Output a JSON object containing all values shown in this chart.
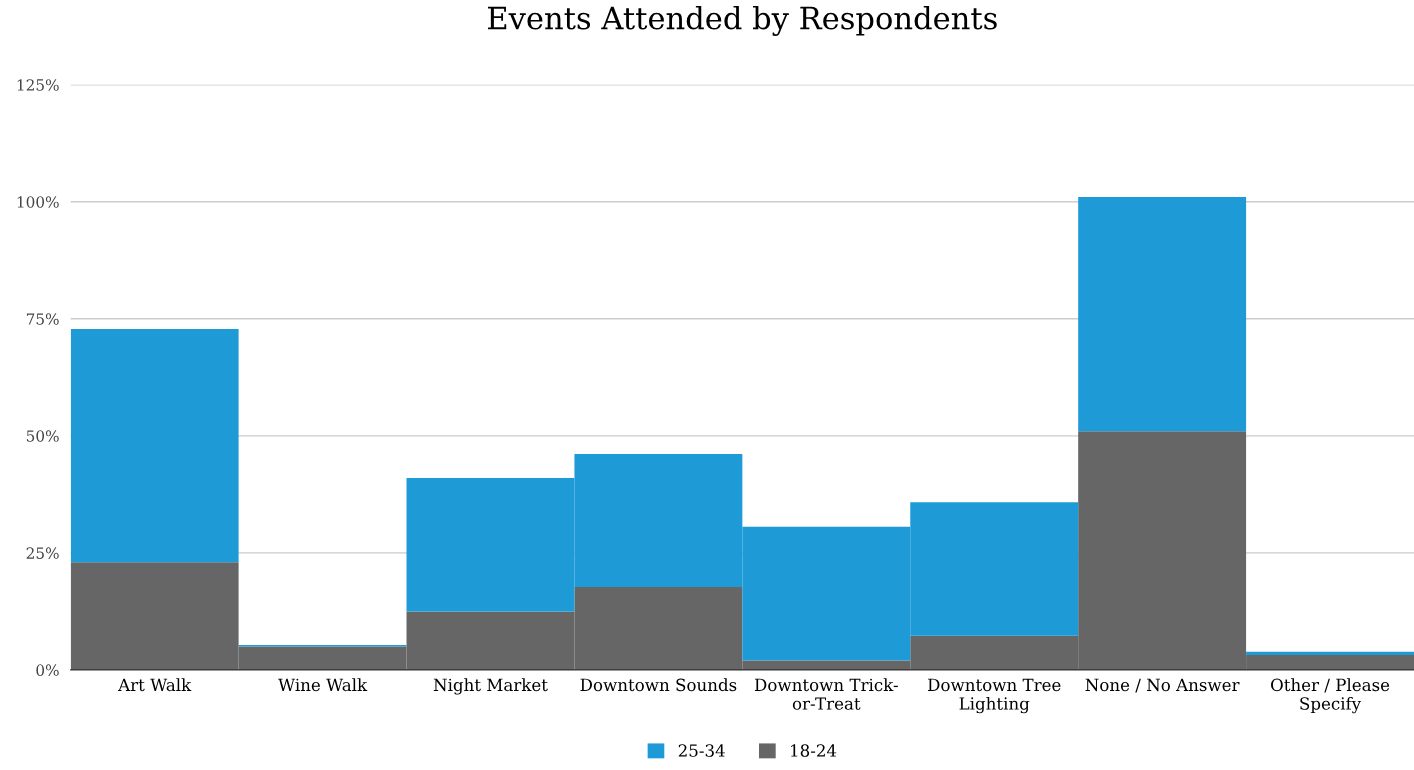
{
  "chart_data": {
    "type": "bar",
    "stacked": true,
    "title": "Events Attended by Respondents",
    "categories": [
      "Art Walk",
      "Wine Walk",
      "Night Market",
      "Downtown Sounds",
      "Downtown Trick-or-Treat",
      "Downtown Tree Lighting",
      "None / No Answer",
      "Other / Please Specify"
    ],
    "series": [
      {
        "name": "18-24",
        "color": "#666666",
        "values": [
          23,
          5,
          12.5,
          17.7,
          2,
          7.3,
          51,
          3.2
        ]
      },
      {
        "name": "25-34",
        "color": "#1e9bd7",
        "values": [
          49.8,
          0.3,
          28.5,
          28.4,
          28.6,
          28.5,
          50,
          0.7
        ]
      }
    ],
    "ylim": [
      0,
      125
    ],
    "yticks": [
      {
        "value": 0,
        "label": "0%"
      },
      {
        "value": 25,
        "label": "25%"
      },
      {
        "value": 50,
        "label": "50%"
      },
      {
        "value": 75,
        "label": "75%"
      },
      {
        "value": 100,
        "label": "100%"
      },
      {
        "value": 125,
        "label": "125%"
      }
    ],
    "grid": "y",
    "legend": "bottom"
  }
}
